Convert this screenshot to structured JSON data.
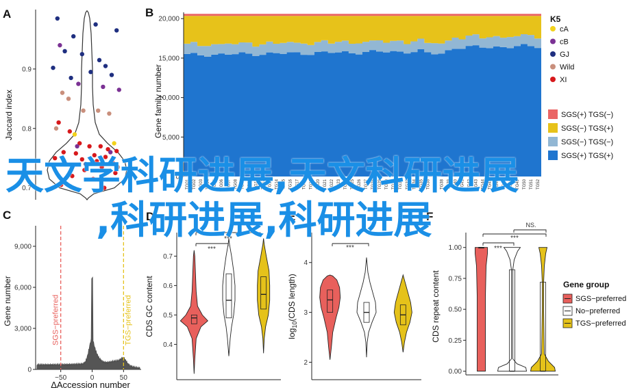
{
  "watermark": {
    "line1": "天文学科研进展,天文科研进展",
    "line2": ",科研进展,科研进展"
  },
  "panels": {
    "A": "A",
    "B": "B",
    "C": "C",
    "D": "D",
    "E": "E",
    "F": "F"
  },
  "colors": {
    "cA": "#f2d21c",
    "cB": "#7b3294",
    "GJ": "#1f2f80",
    "Wild": "#c98f7c",
    "XI": "#d7191c",
    "SGS_TGS_neg": "#ea6565",
    "SGSneg_TGS": "#e7c21a",
    "SGSneg_TGSneg": "#92b7d4",
    "SGS_TGS": "#1f75cf",
    "sgs_pref": "#e8605c",
    "no_pref": "#ffffff",
    "tgs_pref": "#e5c21a"
  },
  "chart_data": [
    {
      "panel": "A",
      "type": "scatter",
      "ylabel": "Jaccard index",
      "yticks": [
        "0.9",
        "0.8",
        "0.7"
      ],
      "yticks_values": [
        0.9,
        0.8,
        0.7
      ],
      "ylim": [
        0.68,
        1.0
      ],
      "violin": true,
      "points": [
        {
          "g": "GJ",
          "y": 0.985
        },
        {
          "g": "GJ",
          "y": 0.955
        },
        {
          "g": "GJ",
          "y": 0.975
        },
        {
          "g": "GJ",
          "y": 0.965
        },
        {
          "g": "GJ",
          "y": 0.93
        },
        {
          "g": "GJ",
          "y": 0.925
        },
        {
          "g": "GJ",
          "y": 0.905
        },
        {
          "g": "GJ",
          "y": 0.902
        },
        {
          "g": "GJ",
          "y": 0.895
        },
        {
          "g": "GJ",
          "y": 0.89
        },
        {
          "g": "GJ",
          "y": 0.885
        },
        {
          "g": "GJ",
          "y": 0.915
        },
        {
          "g": "cB",
          "y": 0.94
        },
        {
          "g": "cB",
          "y": 0.875
        },
        {
          "g": "cB",
          "y": 0.87
        },
        {
          "g": "cB",
          "y": 0.865
        },
        {
          "g": "Wild",
          "y": 0.86
        },
        {
          "g": "Wild",
          "y": 0.83
        },
        {
          "g": "Wild",
          "y": 0.825
        },
        {
          "g": "Wild",
          "y": 0.85
        },
        {
          "g": "Wild",
          "y": 0.83
        },
        {
          "g": "Wild",
          "y": 0.8
        },
        {
          "g": "cA",
          "y": 0.79
        },
        {
          "g": "cA",
          "y": 0.775
        },
        {
          "g": "cA",
          "y": 0.745
        },
        {
          "g": "XI",
          "y": 0.81
        },
        {
          "g": "XI",
          "y": 0.795
        },
        {
          "g": "XI",
          "y": 0.775
        },
        {
          "g": "XI",
          "y": 0.77
        },
        {
          "g": "XI",
          "y": 0.77
        },
        {
          "g": "XI",
          "y": 0.765
        },
        {
          "g": "XI",
          "y": 0.762
        },
        {
          "g": "XI",
          "y": 0.76
        },
        {
          "g": "XI",
          "y": 0.758
        },
        {
          "g": "XI",
          "y": 0.755
        },
        {
          "g": "XI",
          "y": 0.752
        },
        {
          "g": "XI",
          "y": 0.75
        },
        {
          "g": "XI",
          "y": 0.748
        },
        {
          "g": "XI",
          "y": 0.745
        },
        {
          "g": "XI",
          "y": 0.742
        },
        {
          "g": "XI",
          "y": 0.74
        },
        {
          "g": "XI",
          "y": 0.735
        },
        {
          "g": "XI",
          "y": 0.73
        },
        {
          "g": "XI",
          "y": 0.725
        },
        {
          "g": "XI",
          "y": 0.72
        },
        {
          "g": "XI",
          "y": 0.715
        },
        {
          "g": "XI",
          "y": 0.705
        },
        {
          "g": "XI",
          "y": 0.7
        },
        {
          "g": "cB",
          "y": 0.77
        },
        {
          "g": "cB",
          "y": 0.76
        },
        {
          "g": "GJ",
          "y": 0.74
        },
        {
          "g": "Wild",
          "y": 0.735
        }
      ]
    },
    {
      "panel": "B",
      "type": "area",
      "ylabel": "Gene family number",
      "yticks": [
        "0",
        "5,000",
        "10,000",
        "15,000",
        "20,000"
      ],
      "yticks_values": [
        0,
        5000,
        10000,
        15000,
        20000
      ],
      "ylim": [
        0,
        20800
      ],
      "n_samples": 52,
      "series": [
        {
          "name": "SGS(+) TGS(+)",
          "values": [
            15400,
            16100
          ]
        },
        {
          "name": "SGS(−) TGS(−)",
          "values": [
            1300,
            1350
          ]
        },
        {
          "name": "SGS(−) TGS(+)",
          "values": [
            3700,
            3000
          ]
        },
        {
          "name": "SGS(+) TGS(−)",
          "values": [
            250,
            250
          ]
        }
      ],
      "legend_title": "K5",
      "legend_groups": [
        "cA",
        "cB",
        "GJ",
        "Wild",
        "XI"
      ],
      "legend_categories": [
        "SGS(+) TGS(−)",
        "SGS(−) TGS(+)",
        "SGS(−) TGS(−)",
        "SGS(+) TGS(+)"
      ],
      "xtick_labels": [
        "TG01",
        "TG02",
        "TG03",
        "TG04",
        "TG05",
        "TG06",
        "TG07",
        "TG08",
        "TG09",
        "TG10",
        "TG11",
        "TG12",
        "TG13",
        "TG14",
        "TG15",
        "TG16",
        "TG17",
        "TG18",
        "TG19",
        "TG20",
        "TG21",
        "TG22",
        "TG23",
        "TG24",
        "TG25",
        "TG26",
        "TG27",
        "TG28",
        "TG29",
        "TG30",
        "TG31",
        "TG32",
        "TG33",
        "TG34",
        "TG35",
        "TG36",
        "TG37",
        "TG38",
        "TG39",
        "TG40",
        "TG41",
        "TG42",
        "TG43",
        "TG44",
        "TG45",
        "TG46",
        "TG47",
        "TG48",
        "TG49",
        "TG50",
        "TG51",
        "TG52"
      ]
    },
    {
      "panel": "C",
      "type": "area",
      "xlabel": "ΔAccession number",
      "ylabel": "Gene number",
      "xticks": [
        "−50",
        "0",
        "50"
      ],
      "xticks_values": [
        -50,
        0,
        50
      ],
      "yticks": [
        "0",
        "3,000",
        "6,000",
        "9,000"
      ],
      "yticks_values": [
        0,
        3000,
        6000,
        9000
      ],
      "xlim": [
        -90,
        78
      ],
      "ylim": [
        0,
        10500
      ],
      "annotations": [
        "SGS−preferred",
        "TGS−preferred"
      ],
      "thresholds": [
        -50,
        50
      ]
    },
    {
      "panel": "D",
      "type": "violin",
      "ylabel": "CDS GC content",
      "yticks": [
        "0.4",
        "0.5",
        "0.6",
        "0.7"
      ],
      "yticks_values": [
        0.4,
        0.5,
        0.6,
        0.7
      ],
      "ylim": [
        0.28,
        0.78
      ],
      "groups": [
        "SGS−preferred",
        "No−preferred",
        "TGS−preferred"
      ],
      "medians": [
        0.49,
        0.55,
        0.57
      ],
      "q1": [
        0.47,
        0.49,
        0.52
      ],
      "q3": [
        0.5,
        0.64,
        0.63
      ],
      "signif": [
        "***",
        "***"
      ]
    },
    {
      "panel": "E",
      "type": "violin",
      "ylabel": "log10(CDS length)",
      "yticks": [
        "2",
        "3",
        "4"
      ],
      "yticks_values": [
        2,
        3,
        4
      ],
      "ylim": [
        1.65,
        4.6
      ],
      "groups": [
        "SGS−preferred",
        "No−preferred",
        "TGS−preferred"
      ],
      "medians": [
        3.25,
        3.0,
        2.95
      ],
      "q1": [
        3.0,
        2.8,
        2.75
      ],
      "q3": [
        3.45,
        3.2,
        3.15
      ],
      "signif": [
        "***"
      ]
    },
    {
      "panel": "F",
      "type": "violin",
      "ylabel": "CDS repeat content",
      "yticks": [
        "0.00",
        "0.25",
        "0.50",
        "0.75",
        "1.00"
      ],
      "yticks_values": [
        0,
        0.25,
        0.5,
        0.75,
        1.0
      ],
      "ylim": [
        -0.03,
        1.12
      ],
      "groups": [
        "SGS−preferred",
        "No−preferred",
        "TGS−preferred"
      ],
      "medians": [
        1.0,
        0.0,
        0.0
      ],
      "q1": [
        1.0,
        0.0,
        0.0
      ],
      "q3": [
        1.0,
        0.82,
        0.72
      ],
      "signif": [
        "***",
        "***",
        "NS."
      ],
      "legend_title": "Gene group",
      "legend": [
        "SGS−preferred",
        "No−preferred",
        "TGS−preferred"
      ]
    }
  ]
}
